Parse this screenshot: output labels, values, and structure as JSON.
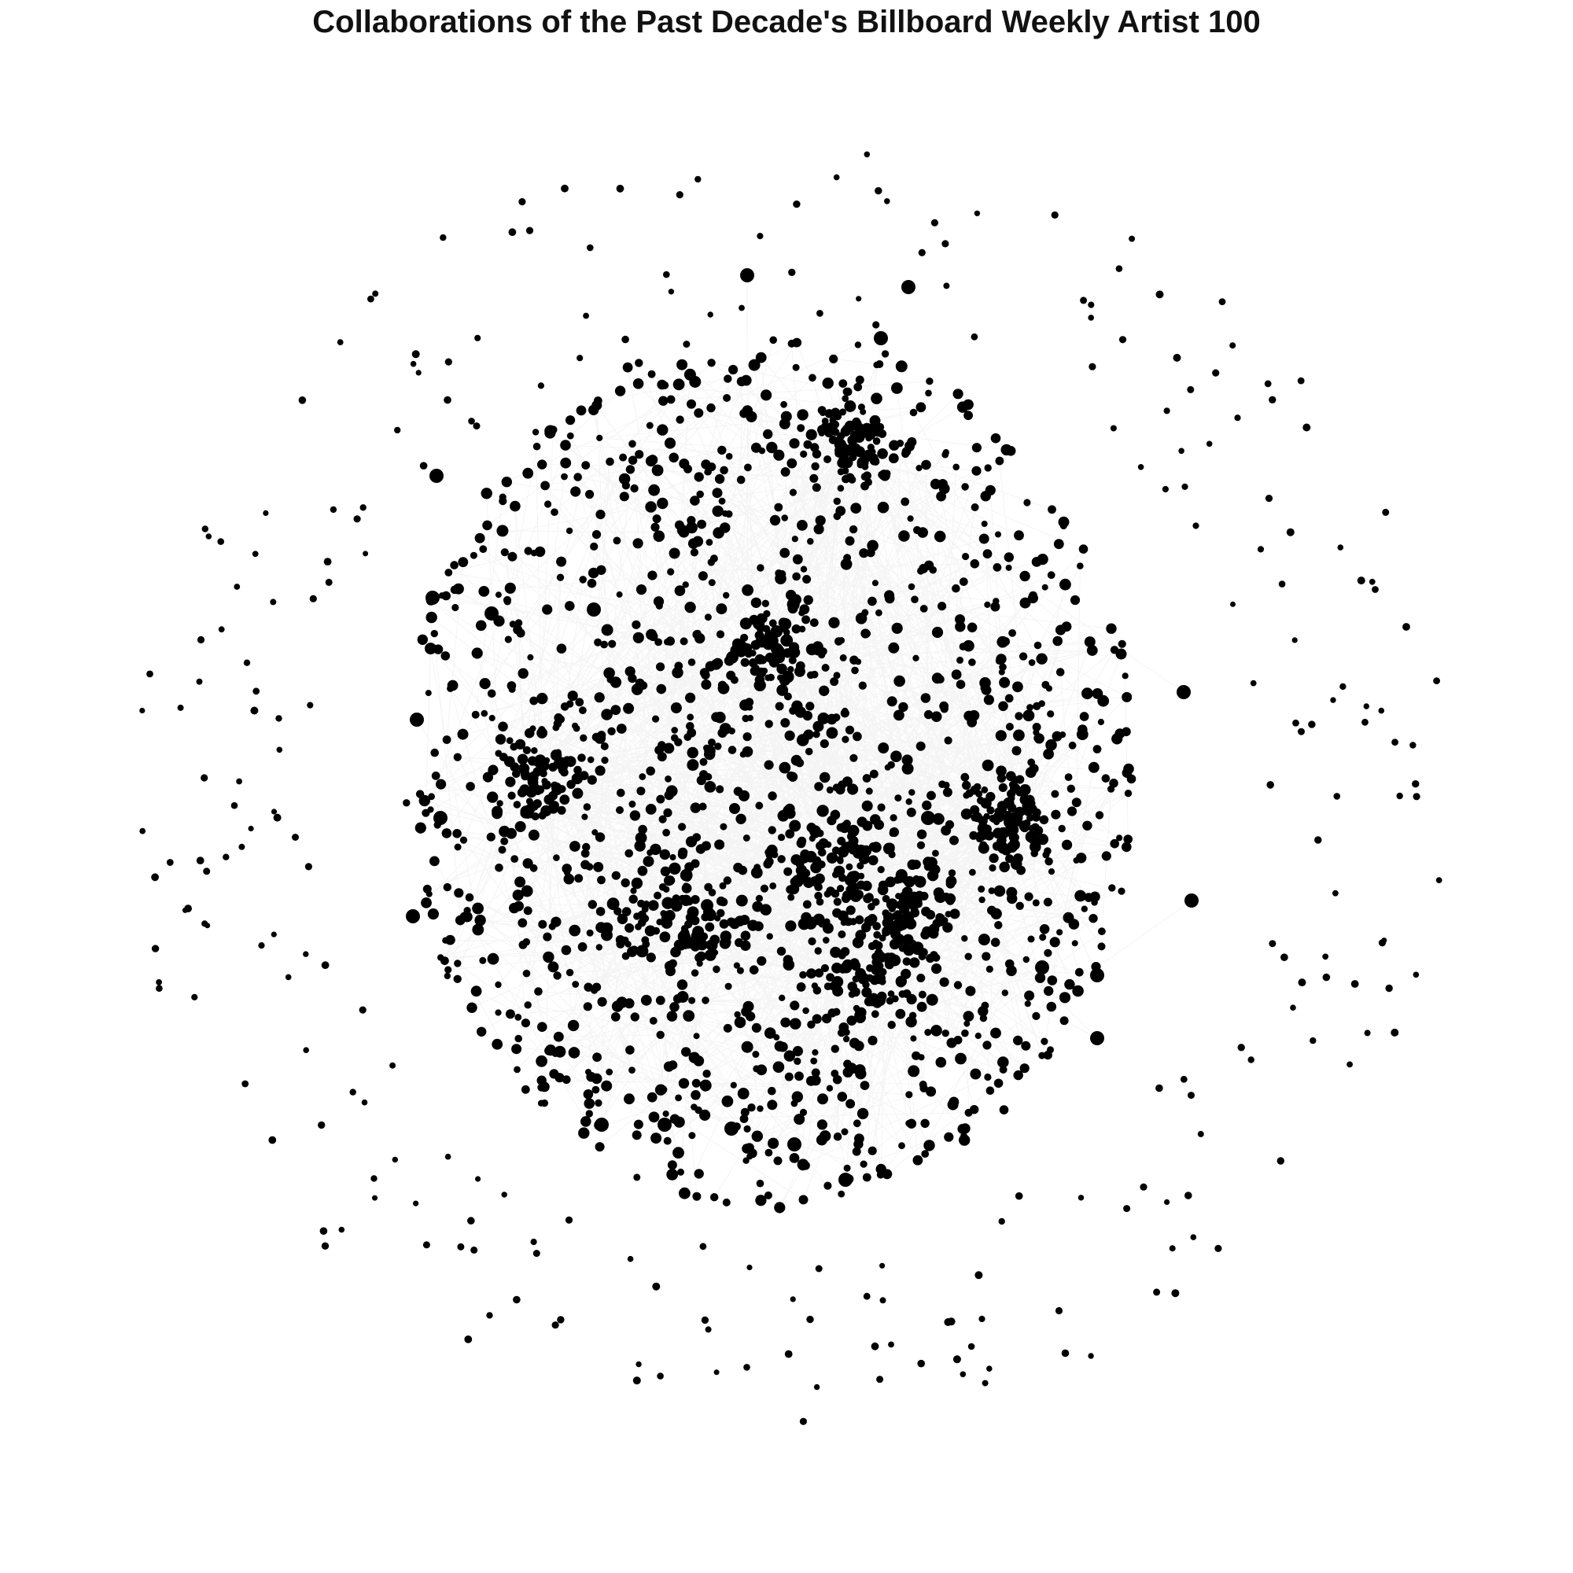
{
  "title": "Collaborations of the Past Decade's Billboard Weekly Artist 100",
  "chart_data": {
    "type": "network",
    "axes": "none",
    "grid": false,
    "legend": "none",
    "node_color": "#000000",
    "edge_color": "#888888"
  }
}
